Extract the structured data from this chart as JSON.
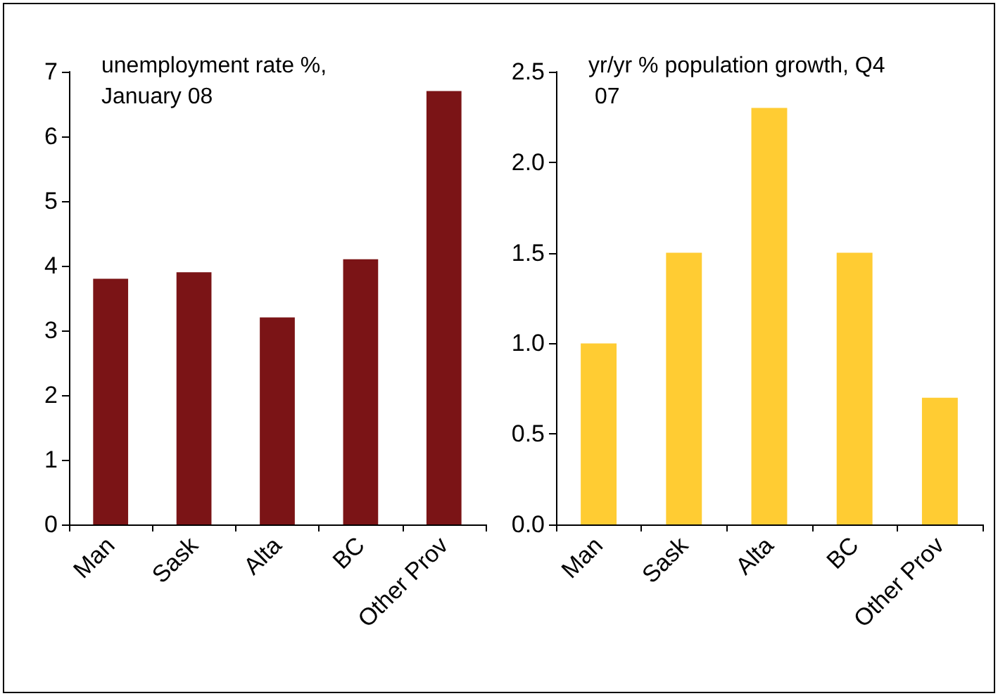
{
  "chart_data": [
    {
      "type": "bar",
      "title": "unemployment rate %, January 08",
      "categories": [
        "Man",
        "Sask",
        "Alta",
        "BC",
        "Other Prov"
      ],
      "values": [
        3.8,
        3.9,
        3.2,
        4.1,
        6.7
      ],
      "color": "#7b1416",
      "ylim": [
        0,
        7
      ],
      "yticks": [
        0,
        1,
        2,
        3,
        4,
        5,
        6,
        7
      ],
      "grid": false
    },
    {
      "type": "bar",
      "title": "yr/yr % population growth, Q4 07",
      "categories": [
        "Man",
        "Sask",
        "Alta",
        "BC",
        "Other Prov"
      ],
      "values": [
        1.0,
        1.5,
        2.3,
        1.5,
        0.7
      ],
      "color": "#ffcc33",
      "ylim": [
        0,
        2.5
      ],
      "yticks": [
        {
          "value": 0,
          "label": "0.0"
        },
        {
          "value": 0.5,
          "label": "0.5"
        },
        {
          "value": 1,
          "label": "1.0"
        },
        {
          "value": 1.5,
          "label": "1.5"
        },
        {
          "value": 2,
          "label": "2.0"
        },
        {
          "value": 2.5,
          "label": "2.5"
        }
      ],
      "grid": false
    }
  ]
}
